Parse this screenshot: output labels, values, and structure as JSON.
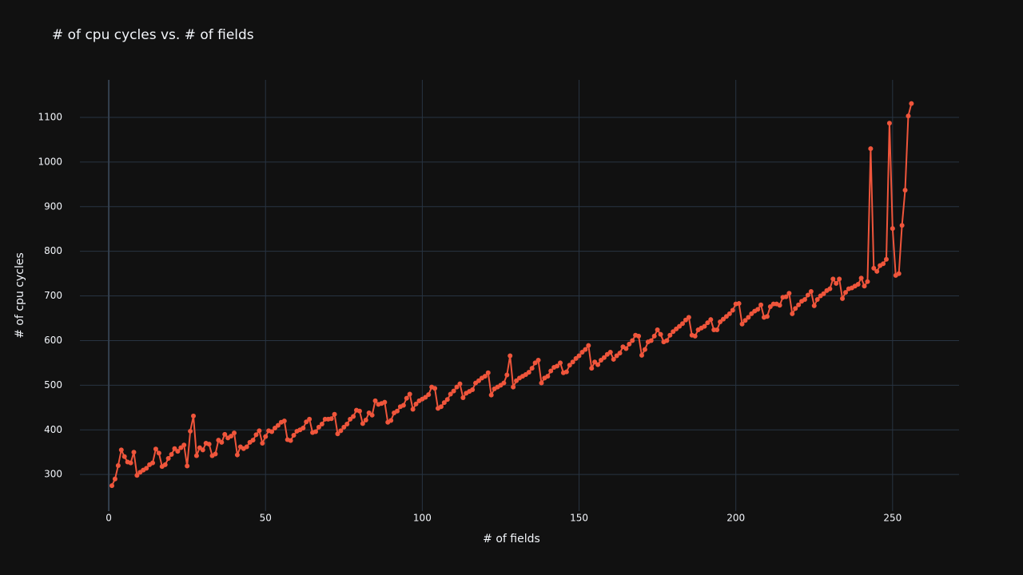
{
  "chart_data": {
    "type": "line",
    "title": "# of cpu cycles vs. # of fields",
    "x_label": "# of fields",
    "y_label": "# of cpu cycles",
    "xlim": [
      -9.2,
      271.2
    ],
    "xticks": [
      0,
      50,
      100,
      150,
      200,
      250
    ],
    "ylim": [
      218,
      1184
    ],
    "yticks": [
      300,
      400,
      500,
      600,
      700,
      800,
      900,
      1000,
      1100
    ],
    "grid": true,
    "x": [
      1,
      2,
      3,
      4,
      5,
      6,
      7,
      8,
      9,
      10,
      11,
      12,
      13,
      14,
      15,
      16,
      17,
      18,
      19,
      20,
      21,
      22,
      23,
      24,
      25,
      26,
      27,
      28,
      29,
      30,
      31,
      32,
      33,
      34,
      35,
      36,
      37,
      38,
      39,
      40,
      41,
      42,
      43,
      44,
      45,
      46,
      47,
      48,
      49,
      50,
      51,
      52,
      53,
      54,
      55,
      56,
      57,
      58,
      59,
      60,
      61,
      62,
      63,
      64,
      65,
      66,
      67,
      68,
      69,
      70,
      71,
      72,
      73,
      74,
      75,
      76,
      77,
      78,
      79,
      80,
      81,
      82,
      83,
      84,
      85,
      86,
      87,
      88,
      89,
      90,
      91,
      92,
      93,
      94,
      95,
      96,
      97,
      98,
      99,
      100,
      101,
      102,
      103,
      104,
      105,
      106,
      107,
      108,
      109,
      110,
      111,
      112,
      113,
      114,
      115,
      116,
      117,
      118,
      119,
      120,
      121,
      122,
      123,
      124,
      125,
      126,
      127,
      128,
      129,
      130,
      131,
      132,
      133,
      134,
      135,
      136,
      137,
      138,
      139,
      140,
      141,
      142,
      143,
      144,
      145,
      146,
      147,
      148,
      149,
      150,
      151,
      152,
      153,
      154,
      155,
      156,
      157,
      158,
      159,
      160,
      161,
      162,
      163,
      164,
      165,
      166,
      167,
      168,
      169,
      170,
      171,
      172,
      173,
      174,
      175,
      176,
      177,
      178,
      179,
      180,
      181,
      182,
      183,
      184,
      185,
      186,
      187,
      188,
      189,
      190,
      191,
      192,
      193,
      194,
      195,
      196,
      197,
      198,
      199,
      200,
      201,
      202,
      203,
      204,
      205,
      206,
      207,
      208,
      209,
      210,
      211,
      212,
      213,
      214,
      215,
      216,
      217,
      218,
      219,
      220,
      221,
      222,
      223,
      224,
      225,
      226,
      227,
      228,
      229,
      230,
      231,
      232,
      233,
      234,
      235,
      236,
      237,
      238,
      239,
      240,
      241,
      242,
      243,
      244,
      245,
      246,
      247,
      248,
      249,
      250,
      251,
      252,
      253,
      254,
      255,
      256
    ],
    "series": [
      {
        "color": "#ef553b",
        "values": [
          275,
          290,
          320,
          355,
          340,
          328,
          326,
          350,
          298,
          305,
          310,
          314,
          322,
          326,
          357,
          348,
          318,
          322,
          336,
          345,
          358,
          352,
          360,
          366,
          319,
          397,
          431,
          342,
          360,
          355,
          370,
          368,
          342,
          346,
          377,
          372,
          390,
          382,
          386,
          393,
          344,
          362,
          358,
          362,
          372,
          377,
          389,
          398,
          370,
          385,
          398,
          396,
          404,
          410,
          417,
          420,
          378,
          376,
          388,
          397,
          400,
          404,
          418,
          424,
          394,
          396,
          406,
          413,
          424,
          424,
          425,
          435,
          391,
          398,
          406,
          413,
          424,
          430,
          444,
          442,
          414,
          422,
          438,
          433,
          465,
          457,
          459,
          462,
          417,
          421,
          438,
          442,
          452,
          455,
          471,
          480,
          446,
          458,
          465,
          469,
          473,
          479,
          496,
          493,
          448,
          452,
          461,
          468,
          480,
          487,
          496,
          503,
          472,
          482,
          486,
          490,
          505,
          510,
          516,
          520,
          528,
          478,
          492,
          496,
          500,
          505,
          523,
          566,
          496,
          510,
          516,
          520,
          524,
          529,
          538,
          550,
          556,
          505,
          516,
          520,
          532,
          540,
          543,
          550,
          528,
          530,
          545,
          552,
          560,
          566,
          574,
          580,
          589,
          538,
          552,
          546,
          556,
          562,
          569,
          574,
          558,
          566,
          572,
          586,
          582,
          592,
          600,
          612,
          610,
          567,
          580,
          597,
          600,
          610,
          624,
          614,
          597,
          600,
          612,
          620,
          626,
          632,
          638,
          646,
          652,
          612,
          610,
          624,
          628,
          632,
          640,
          647,
          624,
          624,
          642,
          648,
          654,
          660,
          668,
          682,
          683,
          637,
          645,
          652,
          660,
          666,
          670,
          680,
          652,
          654,
          676,
          682,
          682,
          679,
          697,
          698,
          706,
          660,
          672,
          680,
          688,
          692,
          702,
          710,
          678,
          692,
          700,
          705,
          712,
          716,
          738,
          728,
          738,
          694,
          708,
          716,
          718,
          722,
          726,
          740,
          722,
          732,
          1030,
          762,
          755,
          768,
          772,
          782,
          1087,
          851,
          746,
          750,
          858,
          937,
          1103,
          1131
        ]
      }
    ]
  }
}
